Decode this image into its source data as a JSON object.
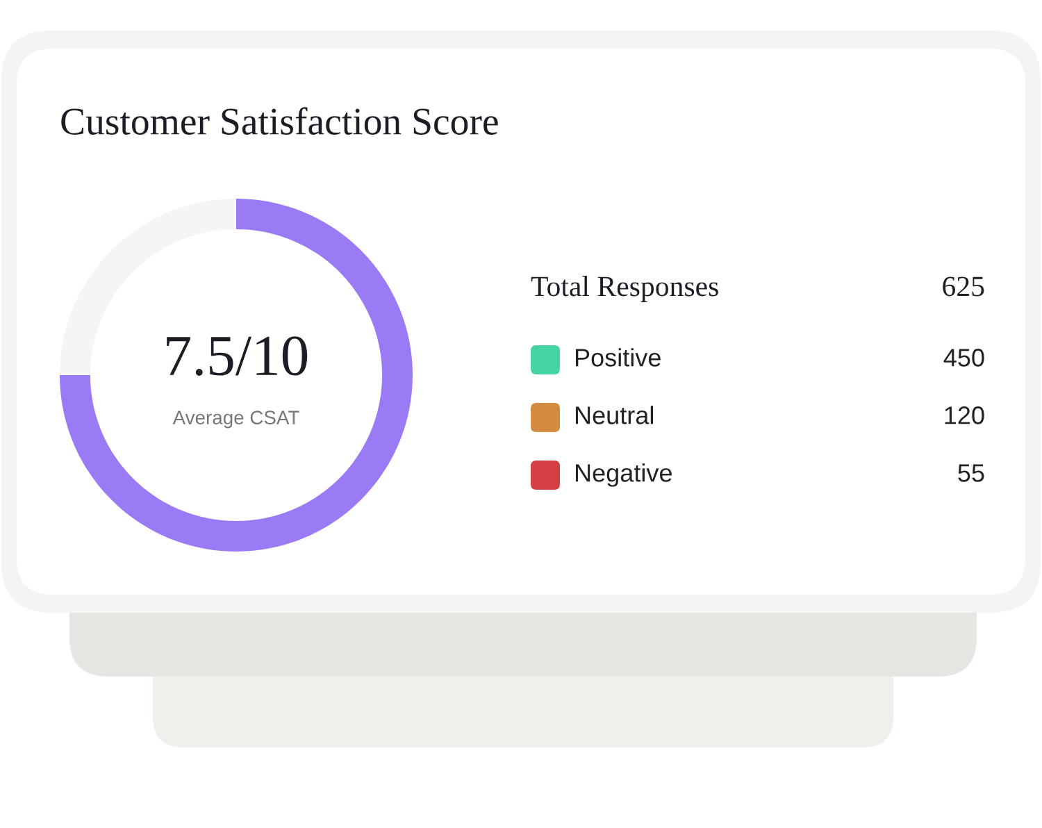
{
  "chart_data": [
    {
      "type": "donut",
      "title": "Customer Satisfaction Score",
      "categories": [
        null,
        null
      ],
      "values": [
        75,
        25
      ],
      "colors": [
        "#9a7bf5",
        "#f5f5f5"
      ],
      "annotations": [
        "7.5/10",
        "Average CSAT"
      ]
    },
    {
      "type": "other",
      "title": "Total Responses",
      "annotations": [
        "625"
      ],
      "categories": [
        "Positive",
        "Neutral",
        "Negative"
      ],
      "values": [
        450,
        120,
        55
      ],
      "colors": [
        "#45d5a5",
        "#d48b41",
        "#d43f44"
      ],
      "data_labels": true
    }
  ]
}
